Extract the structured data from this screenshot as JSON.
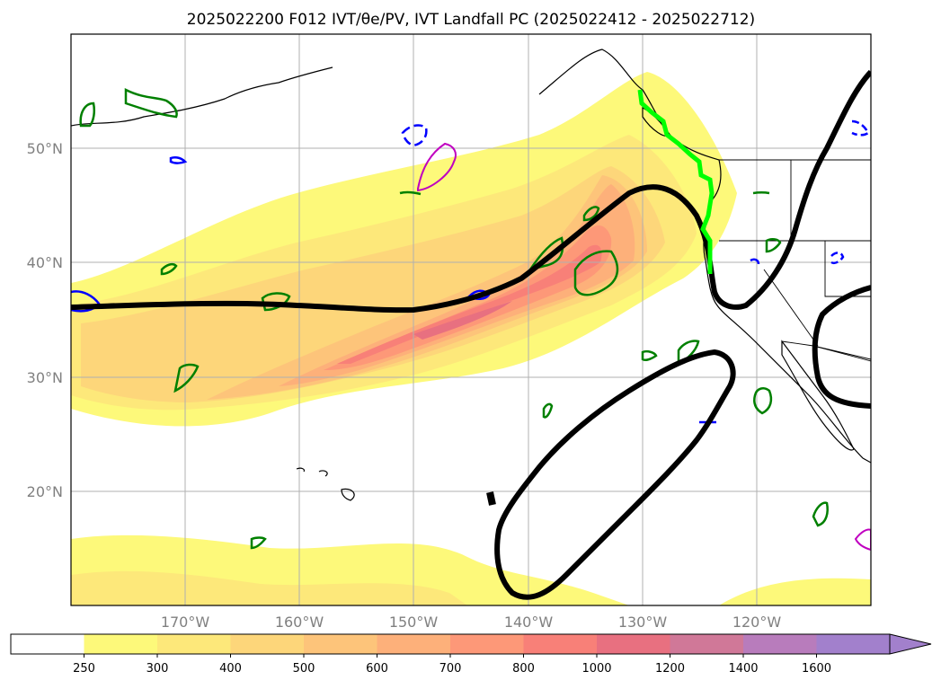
{
  "title": "2025022200 F012 IVT/θe/PV, IVT Landfall PC (2025022412 - 2025022712)",
  "map": {
    "lon_labels": [
      "170°W",
      "160°W",
      "150°W",
      "140°W",
      "130°W",
      "120°W"
    ],
    "lat_labels": [
      "50°N",
      "40°N",
      "30°N",
      "20°N"
    ],
    "lon_range": [
      -180,
      -110
    ],
    "lat_range": [
      10,
      60
    ],
    "variables": [
      "IVT",
      "θe",
      "PV",
      "IVT Landfall PC"
    ]
  },
  "colorbar": {
    "levels": [
      "250",
      "300",
      "400",
      "500",
      "600",
      "700",
      "800",
      "1000",
      "1200",
      "1400",
      "1600"
    ],
    "colors": [
      "#ffffff",
      "#fdf97a",
      "#fde87a",
      "#fdd67a",
      "#fdc47a",
      "#fdb07a",
      "#fd9878",
      "#f88078",
      "#e87080",
      "#d07898",
      "#b87cbc",
      "#a280cc"
    ],
    "extend": "max"
  },
  "contour_colors": {
    "ivt_contour": "#000000",
    "theta_e_positive": "#008000",
    "theta_e_negative": "#0000ff",
    "pv": "#c000c0",
    "landfall": "#00ff00"
  }
}
